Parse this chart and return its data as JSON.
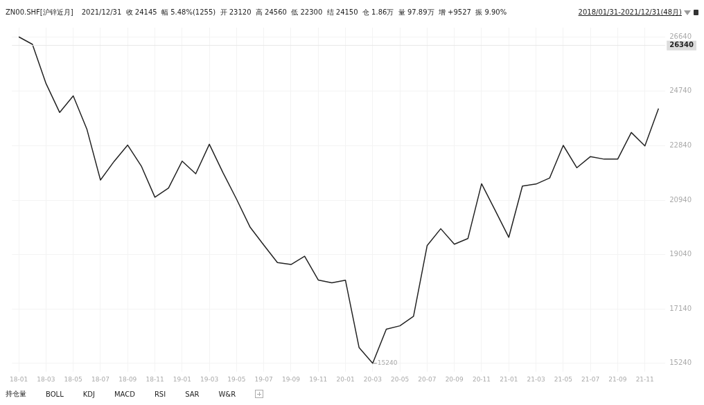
{
  "chart_data": {
    "type": "line",
    "title": "ZN00.SHF[沪锌近月]",
    "subtitle": "2021/12/31  收 24145  幅 5.48%(1255)  开 23120  高 24560  低 22300  结 24150  仓 1.86万  量 97.89万  增 +9527  振 9.90%",
    "categories": [
      "18-01",
      null,
      "18-03",
      null,
      "18-05",
      null,
      "18-07",
      null,
      "18-09",
      null,
      "18-11",
      null,
      "19-01",
      null,
      "19-03",
      null,
      "19-05",
      null,
      "19-07",
      null,
      "19-09",
      null,
      "19-11",
      null,
      "20-01",
      null,
      "20-03",
      null,
      "20-05",
      null,
      "20-07",
      null,
      "20-09",
      null,
      "20-11",
      null,
      "21-01",
      null,
      "21-03",
      null,
      "21-05",
      null,
      "21-07",
      null,
      "21-09",
      null,
      "21-11",
      null
    ],
    "series": [
      {
        "color": "#222222",
        "values": [
          26640,
          26380,
          25010,
          24000,
          24580,
          23420,
          21640,
          22290,
          22860,
          22130,
          21040,
          21360,
          22300,
          21860,
          22890,
          21900,
          20970,
          19990,
          19370,
          18760,
          18690,
          18980,
          18150,
          18050,
          18140,
          15790,
          15240,
          16430,
          16550,
          16880,
          19350,
          19940,
          19400,
          19600,
          21510,
          20580,
          19640,
          21430,
          21500,
          21710,
          22850,
          22070,
          22460,
          22370,
          22370,
          23300,
          22830,
          24140
        ]
      }
    ],
    "ylim": [
      14940,
      26960
    ],
    "yticks": [
      15240,
      17140,
      19040,
      20940,
      22840,
      24740,
      26640
    ],
    "grid": true,
    "marker": "none",
    "line_style": "solid",
    "ref_lines": [
      {
        "axis": "y",
        "value": 26340,
        "label": "26340",
        "color": "#e6e6e6"
      }
    ],
    "annotations": [
      "2018/01/31-2021/12/31(48月)",
      "持仓量",
      "BOLL",
      "KDJ",
      "MACD",
      "RSI",
      "SAR",
      "W&R",
      {
        "text": "15240",
        "x": "20-03",
        "y": 15240
      }
    ]
  }
}
